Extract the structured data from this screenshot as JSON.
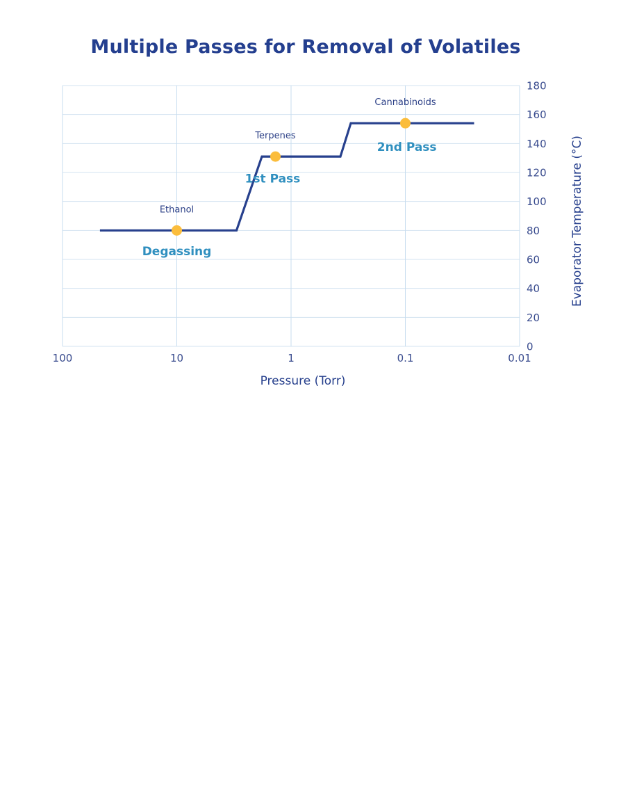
{
  "chart_data": {
    "type": "line",
    "title": "Multiple Passes for Removal of Volatiles",
    "xlabel": "Pressure (Torr)",
    "ylabel": "Evaporator Temperature (°C)",
    "x_scale": "log",
    "x_reversed": true,
    "xlim": [
      100,
      0.01
    ],
    "ylim": [
      0,
      180
    ],
    "x_ticks": [
      100,
      10,
      1,
      0.1,
      0.01
    ],
    "x_tick_labels": [
      "100",
      "10",
      "1",
      "0.1",
      "0.01"
    ],
    "y_ticks": [
      0,
      20,
      40,
      60,
      80,
      100,
      120,
      140,
      160,
      180
    ],
    "y_tick_labels": [
      "0",
      "20",
      "40",
      "60",
      "80",
      "100",
      "120",
      "140",
      "160",
      "180"
    ],
    "y_axis_side": "right",
    "grid": true,
    "line_color": "#27408d",
    "marker_color": "#fbbd3c",
    "stage_label_color": "#2f8fbf",
    "series": [
      {
        "x": [
          47,
          3,
          1.8,
          0.37,
          0.3,
          0.025
        ],
        "y": [
          80,
          80,
          131,
          131,
          154,
          154
        ]
      }
    ],
    "points": [
      {
        "label": "Ethanol",
        "x": 10,
        "y": 80
      },
      {
        "label": "Terpenes",
        "x": 1.37,
        "y": 131
      },
      {
        "label": "Cannabinoids",
        "x": 0.1,
        "y": 154
      }
    ],
    "stage_labels": [
      {
        "text": "Degassing",
        "x": 10,
        "y": 63
      },
      {
        "text": "1st Pass",
        "x": 1.45,
        "y": 113
      },
      {
        "text": "2nd Pass",
        "x": 0.097,
        "y": 135
      }
    ]
  }
}
